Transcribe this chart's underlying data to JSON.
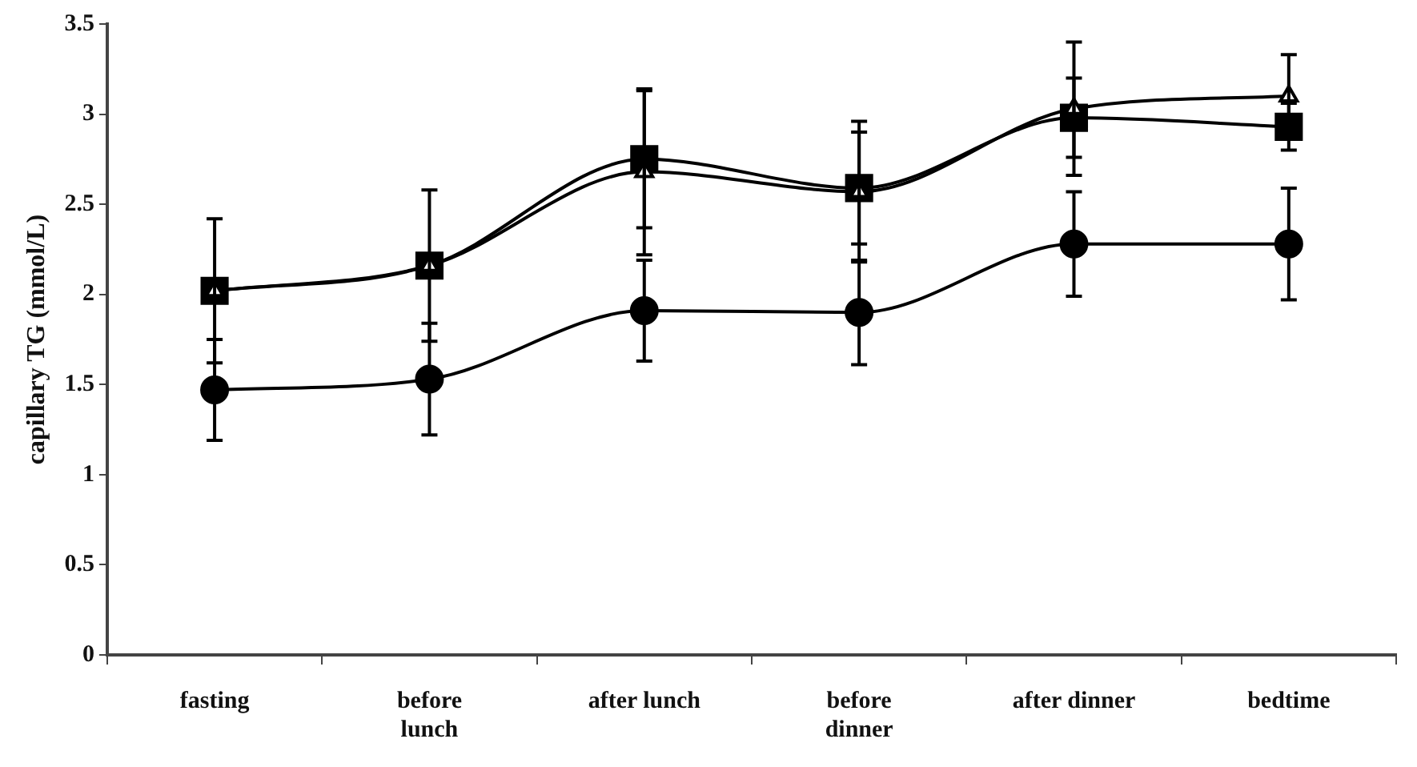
{
  "chart_data": {
    "type": "line",
    "ylabel": "capillary TG (mmol/L)",
    "categories": [
      "fasting",
      "before\nlunch",
      "after lunch",
      "before\ndinner",
      "after dinner",
      "bedtime"
    ],
    "series": [
      {
        "color": "#000000",
        "marker": "square",
        "values": [
          2.02,
          2.16,
          2.75,
          2.59,
          2.98,
          2.93
        ],
        "errors": [
          null,
          null,
          0.38,
          0.31,
          0.22,
          0.13
        ]
      },
      {
        "color": "#000000",
        "marker": "triangle",
        "values": [
          2.02,
          2.16,
          2.68,
          2.57,
          3.03,
          3.1
        ],
        "errors": [
          0.4,
          0.42,
          0.46,
          0.39,
          0.37,
          0.23
        ]
      },
      {
        "color": "#000000",
        "marker": "circle",
        "values": [
          1.47,
          1.53,
          1.91,
          1.9,
          2.28,
          2.28
        ],
        "errors": [
          0.28,
          0.31,
          0.28,
          0.29,
          0.29,
          0.31
        ]
      }
    ],
    "ylim": [
      0,
      3.5
    ],
    "yticks": [
      0,
      0.5,
      1,
      1.5,
      2,
      2.5,
      3,
      3.5
    ],
    "grid": false,
    "legend": false,
    "line_style": "solid"
  }
}
